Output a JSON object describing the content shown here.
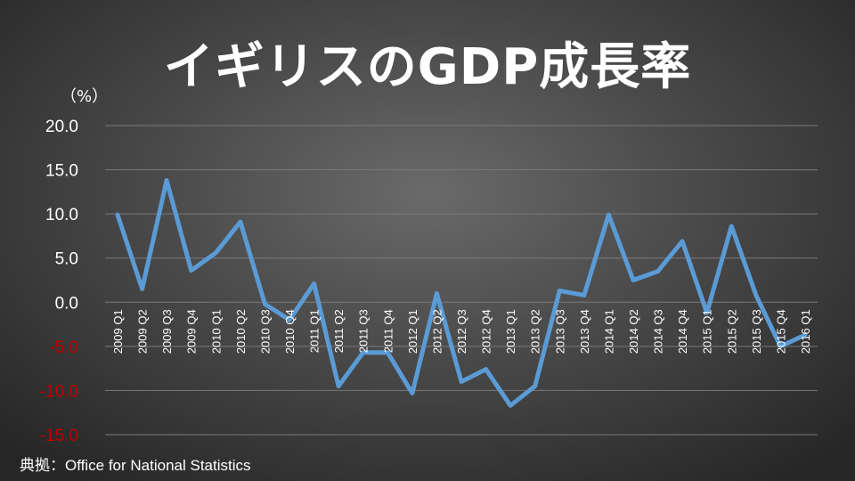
{
  "title": "イギリスのGDP成長率",
  "unit_label": "（%）",
  "source": "典拠：Office for National Statistics",
  "colors": {
    "line": "#5b9bd5",
    "gridline": "#7a7a7a",
    "positive_tick": "#ffffff",
    "negative_tick": "#c00000"
  },
  "chart_data": {
    "type": "line",
    "title": "イギリスのGDP成長率",
    "ylabel": "（%）",
    "xlabel": "",
    "ylim": [
      -15,
      20
    ],
    "yticks": [
      "20.0",
      "15.0",
      "10.0",
      "5.0",
      "0.0",
      "-5.0",
      "-10.0",
      "-15.0"
    ],
    "grid": true,
    "categories": [
      "2009 Q1",
      "2009 Q2",
      "2009 Q3",
      "2009 Q4",
      "2010 Q1",
      "2010 Q2",
      "2010 Q3",
      "2010 Q4",
      "2011 Q1",
      "2011 Q2",
      "2011 Q3",
      "2011 Q4",
      "2012 Q1",
      "2012 Q2",
      "2012 Q3",
      "2012 Q4",
      "2013 Q1",
      "2013 Q2",
      "2013 Q3",
      "2013 Q4",
      "2014 Q1",
      "2014 Q2",
      "2014 Q3",
      "2014 Q4",
      "2015 Q1",
      "2015 Q2",
      "2015 Q3",
      "2015 Q4",
      "2016 Q1"
    ],
    "series": [
      {
        "values": [
          9.9,
          1.5,
          13.8,
          3.6,
          5.6,
          9.1,
          -0.2,
          -2.0,
          2.1,
          -9.5,
          -5.7,
          -5.7,
          -10.3,
          1.0,
          -9.0,
          -7.6,
          -11.7,
          -9.5,
          1.3,
          0.8,
          9.9,
          2.5,
          3.5,
          6.9,
          -1.2,
          8.6,
          0.8,
          -5.0,
          -3.7
        ]
      }
    ]
  }
}
